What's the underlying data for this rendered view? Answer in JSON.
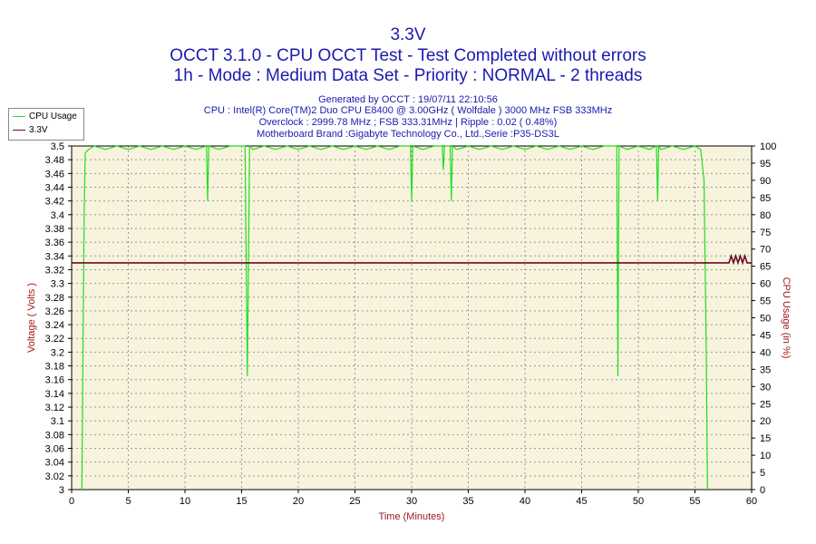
{
  "header": {
    "title": "3.3V",
    "subtitle": "OCCT 3.1.0 - CPU OCCT Test - Test Completed without errors",
    "mode_line": "1h - Mode : Medium Data Set - Priority : NORMAL - 2 threads",
    "info_lines": [
      "Generated by OCCT : 19/07/11 22:10:56",
      "CPU : Intel(R) Core(TM)2 Duo CPU E8400 @ 3.00GHz ( Wolfdale ) 3000 MHz FSB 333MHz",
      "Overclock : 2999.78 MHz ; FSB 333.31MHz | Ripple : 0.02 ( 0.48%)",
      "Motherboard Brand :Gigabyte Technology Co., Ltd.,Serie :P35-DS3L"
    ]
  },
  "colors": {
    "title": "#1a1ab0",
    "axis_label": "#a01818",
    "plot_bg": "#f7f3dc",
    "cpu_series": "#22dd22",
    "voltage_series": "#6a0a2a"
  },
  "chart_data": {
    "type": "line",
    "xlabel": "Time (Minutes)",
    "ylabel": "Voltage ( Volts )",
    "y2label": "CPU Usage (in %)",
    "xlim": [
      0,
      60
    ],
    "ylim": [
      3.0,
      3.5
    ],
    "y2lim": [
      0,
      100
    ],
    "x_ticks": [
      0,
      5,
      10,
      15,
      20,
      25,
      30,
      35,
      40,
      45,
      50,
      55,
      60
    ],
    "y_ticks": [
      "3",
      "3.02",
      "3.04",
      "3.06",
      "3.08",
      "3.1",
      "3.12",
      "3.14",
      "3.16",
      "3.18",
      "3.2",
      "3.22",
      "3.24",
      "3.26",
      "3.28",
      "3.3",
      "3.32",
      "3.34",
      "3.36",
      "3.38",
      "3.4",
      "3.42",
      "3.44",
      "3.46",
      "3.48",
      "3.5"
    ],
    "y2_ticks": [
      0,
      5,
      10,
      15,
      20,
      25,
      30,
      35,
      40,
      45,
      50,
      55,
      60,
      65,
      70,
      75,
      80,
      85,
      90,
      95,
      100
    ],
    "grid": true,
    "legend": {
      "position": "top-left",
      "entries": [
        "CPU Usage",
        "3.3V"
      ]
    },
    "series": [
      {
        "name": "CPU Usage",
        "axis": "right",
        "x": [
          0.9,
          1.1,
          1.2,
          1.5,
          2,
          3,
          4,
          5,
          6,
          7,
          8,
          9,
          10,
          11,
          11.9,
          12.0,
          12.1,
          13,
          14,
          15.3,
          15.5,
          15.7,
          16,
          17,
          18,
          19,
          20,
          21,
          22,
          23,
          24,
          25,
          26,
          27,
          28,
          29,
          29.9,
          30.0,
          30.1,
          31,
          32,
          32.7,
          32.8,
          32.9,
          33.4,
          33.5,
          33.6,
          34,
          35,
          36,
          37,
          38,
          39,
          40,
          41,
          42,
          43,
          44,
          45,
          46,
          47,
          48.1,
          48.2,
          48.3,
          49,
          50,
          51,
          51.6,
          51.7,
          51.8,
          52,
          53,
          54,
          55,
          55.5,
          55.8,
          56.0,
          56.1
        ],
        "values": [
          0,
          80,
          98,
          99,
          100,
          99,
          100,
          99,
          100,
          99,
          100,
          99,
          100,
          99,
          100,
          84,
          100,
          99,
          100,
          100,
          33,
          100,
          99,
          100,
          99,
          100,
          99,
          100,
          99,
          100,
          99,
          100,
          99,
          100,
          99,
          100,
          100,
          84,
          100,
          99,
          100,
          100,
          93,
          100,
          100,
          84,
          100,
          99,
          100,
          99,
          100,
          99,
          100,
          99,
          100,
          99,
          100,
          99,
          100,
          99,
          100,
          100,
          33,
          100,
          99,
          100,
          99,
          100,
          84,
          100,
          99,
          100,
          99,
          100,
          99,
          90,
          40,
          0
        ]
      },
      {
        "name": "3.3V",
        "axis": "left",
        "x": [
          0,
          57.8,
          58.0,
          58.2,
          58.4,
          58.6,
          58.8,
          59.0,
          59.2,
          59.4,
          59.6,
          59.8,
          60
        ],
        "values": [
          3.33,
          3.33,
          3.33,
          3.34,
          3.33,
          3.34,
          3.33,
          3.34,
          3.33,
          3.34,
          3.33,
          3.33,
          3.33
        ]
      }
    ]
  }
}
